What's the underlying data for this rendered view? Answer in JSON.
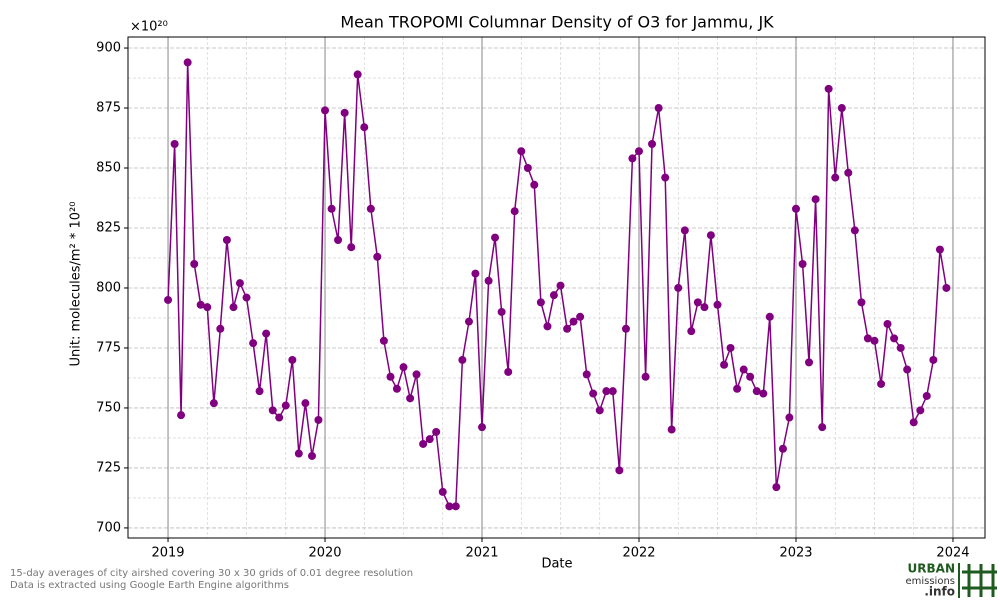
{
  "chart_data": {
    "type": "line",
    "title": "Mean TROPOMI Columnar Density of O3 for Jammu, JK",
    "x_label": "Date",
    "y_label": "Unit: molecules/m² * 10²⁰",
    "offset_label": "×10²⁰",
    "footnotes": [
      "15-day averages of city airshed covering 30 x 30 grids of 0.01 degree resolution",
      "Data is extracted using Google Earth Engine algorithms"
    ],
    "logo": [
      "URBAN",
      "emissions",
      ".info"
    ],
    "grid": true,
    "xlim": [
      2018.745,
      2024.204
    ],
    "xticks": [
      2019,
      2020,
      2021,
      2022,
      2023,
      2024
    ],
    "ylim": [
      695.8,
      904.6
    ],
    "yticks": [
      700,
      725,
      750,
      775,
      800,
      825,
      850,
      875,
      900
    ],
    "x": [
      2019.0,
      2019.042,
      2019.083,
      2019.125,
      2019.167,
      2019.208,
      2019.25,
      2019.292,
      2019.333,
      2019.375,
      2019.417,
      2019.458,
      2019.5,
      2019.542,
      2019.583,
      2019.625,
      2019.667,
      2019.708,
      2019.75,
      2019.792,
      2019.833,
      2019.875,
      2019.917,
      2019.958,
      2020.0,
      2020.042,
      2020.083,
      2020.125,
      2020.167,
      2020.208,
      2020.25,
      2020.292,
      2020.333,
      2020.375,
      2020.417,
      2020.458,
      2020.5,
      2020.542,
      2020.583,
      2020.625,
      2020.667,
      2020.708,
      2020.75,
      2020.792,
      2020.833,
      2020.875,
      2020.917,
      2020.958,
      2021.0,
      2021.042,
      2021.083,
      2021.125,
      2021.167,
      2021.208,
      2021.25,
      2021.292,
      2021.333,
      2021.375,
      2021.417,
      2021.458,
      2021.5,
      2021.542,
      2021.583,
      2021.625,
      2021.667,
      2021.708,
      2021.75,
      2021.792,
      2021.833,
      2021.875,
      2021.917,
      2021.958,
      2022.0,
      2022.042,
      2022.083,
      2022.125,
      2022.167,
      2022.208,
      2022.25,
      2022.292,
      2022.333,
      2022.375,
      2022.417,
      2022.458,
      2022.5,
      2022.542,
      2022.583,
      2022.625,
      2022.667,
      2022.708,
      2022.75,
      2022.792,
      2022.833,
      2022.875,
      2022.917,
      2022.958,
      2023.0,
      2023.042,
      2023.083,
      2023.125,
      2023.167,
      2023.208,
      2023.25,
      2023.292,
      2023.333,
      2023.375,
      2023.417,
      2023.458,
      2023.5,
      2023.542,
      2023.583,
      2023.625,
      2023.667,
      2023.708,
      2023.75,
      2023.792,
      2023.833,
      2023.875,
      2023.917,
      2023.958
    ],
    "series": [
      {
        "name": "O3",
        "color": "#800080",
        "values": [
          795,
          860,
          747,
          894,
          810,
          793,
          792,
          752,
          783,
          820,
          792,
          802,
          796,
          777,
          757,
          781,
          749,
          746,
          751,
          770,
          731,
          752,
          730,
          745,
          874,
          833,
          820,
          873,
          817,
          889,
          867,
          833,
          813,
          778,
          763,
          758,
          767,
          754,
          764,
          735,
          737,
          740,
          715,
          709,
          709,
          770,
          786,
          806,
          742,
          803,
          821,
          790,
          765,
          832,
          857,
          850,
          843,
          794,
          784,
          797,
          801,
          783,
          786,
          788,
          764,
          756,
          749,
          757,
          757,
          724,
          783,
          854,
          857,
          763,
          860,
          875,
          846,
          741,
          800,
          824,
          782,
          794,
          792,
          822,
          793,
          768,
          775,
          758,
          766,
          763,
          757,
          756,
          788,
          717,
          733,
          746,
          833,
          810,
          769,
          837,
          742,
          883,
          846,
          875,
          848,
          824,
          794,
          779,
          778,
          760,
          785,
          779,
          775,
          766,
          744,
          749,
          755,
          770,
          816,
          800
        ]
      }
    ]
  }
}
